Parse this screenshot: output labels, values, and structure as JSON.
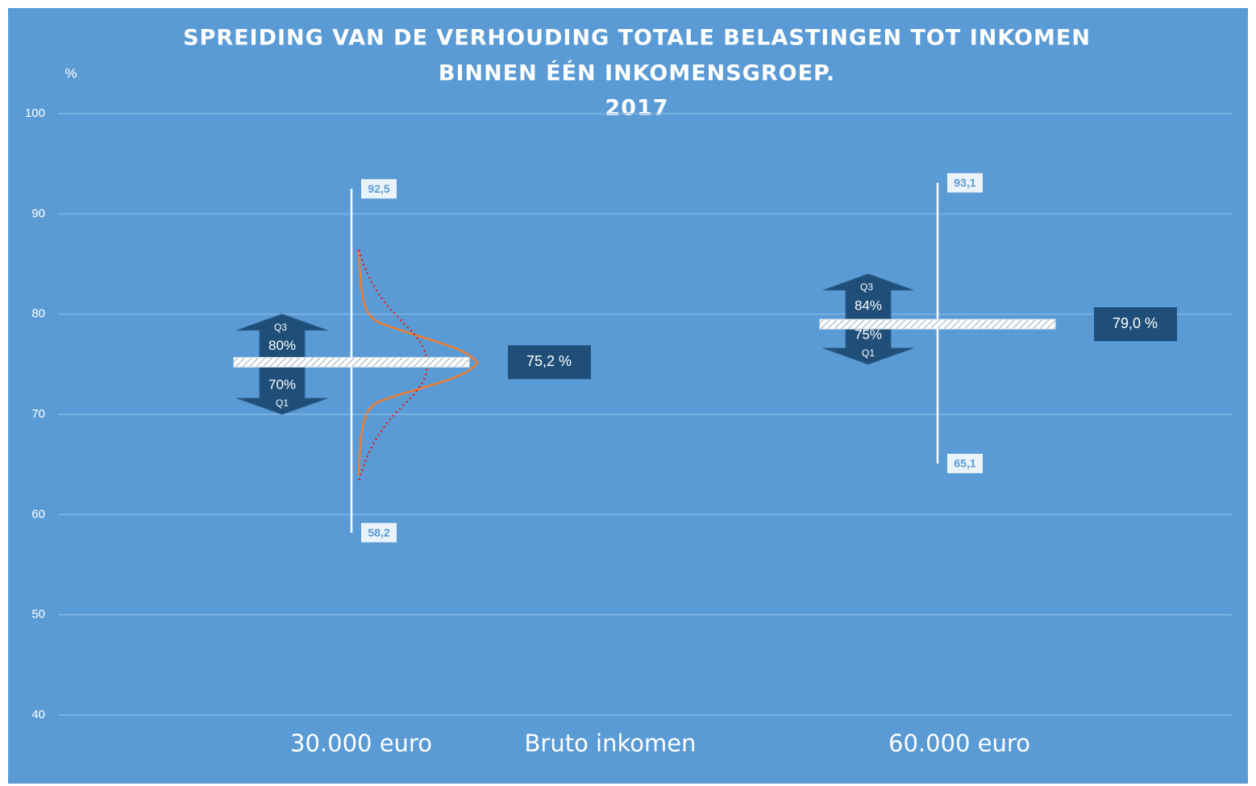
{
  "chart_data": {
    "type": "range-box",
    "title": [
      "SPREIDING VAN DE VERHOUDING TOTALE BELASTINGEN TOT INKOMEN",
      "BINNEN ÉÉN INKOMENSGROEP.",
      "2017"
    ],
    "y_axis_label": "%",
    "x_axis_label": "Bruto inkomen",
    "ylim": [
      40,
      100
    ],
    "yticks": [
      40,
      50,
      60,
      70,
      80,
      90,
      100
    ],
    "grid": true,
    "q3_name": "Q3",
    "q1_name": "Q1",
    "groups": [
      {
        "category": "30.000 euro",
        "max": 92.5,
        "max_label": "92,5",
        "min": 58.2,
        "min_label": "58,2",
        "q3": 80,
        "q3_label": "80%",
        "q1": 70,
        "q1_label": "70%",
        "mean": 75.2,
        "mean_label": "75,2 %"
      },
      {
        "category": "60.000 euro",
        "max": 93.1,
        "max_label": "93,1",
        "min": 65.1,
        "min_label": "65,1",
        "q3": 84,
        "q3_label": "84%",
        "q1": 75,
        "q1_label": "75%",
        "mean": 79.0,
        "mean_label": "79,0 %"
      }
    ]
  }
}
